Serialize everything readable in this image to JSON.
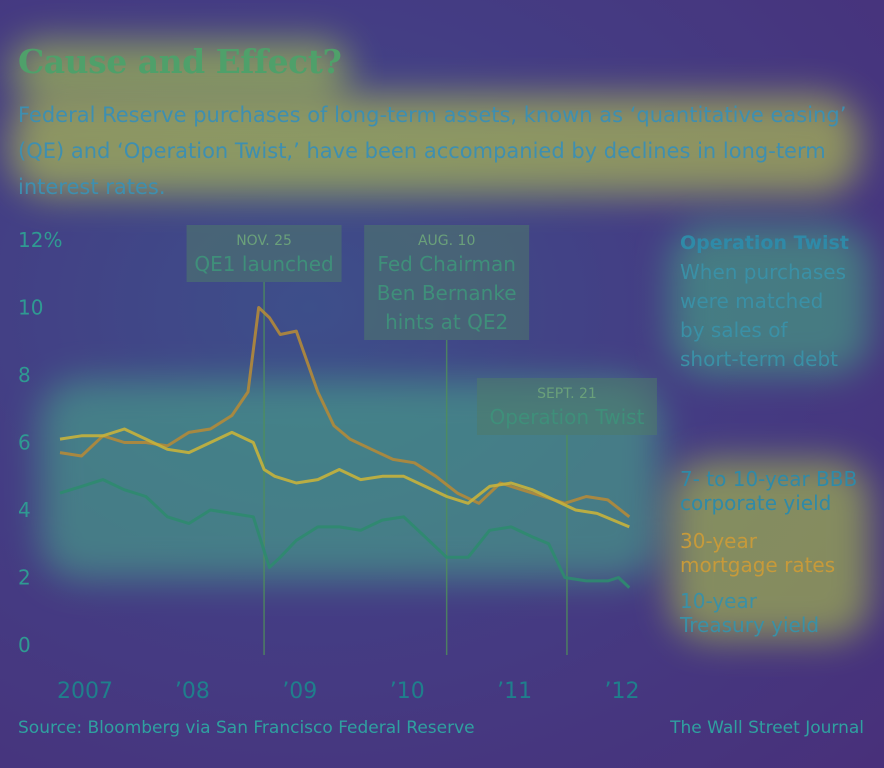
{
  "title": "Cause and Effect?",
  "subtitle": "Federal Reserve purchases of long-term assets, known as ‘quantitative easing’ (QE) and ‘Operation Twist,’ have been accompanied by declines in long-term interest rates.",
  "source": "Source: Bloomberg via San Francisco Federal Reserve",
  "credit": "The Wall Street Journal",
  "sidebar": {
    "heading": "Operation Twist",
    "lines": [
      "When purchases",
      "were matched",
      "by sales of",
      "short-term debt"
    ]
  },
  "colors": {
    "corporate": "#b28a3a",
    "mortgage": "#c7b23c",
    "treasury": "#2e8b6f",
    "annotation_box": "#4f7a6a"
  },
  "chart_data": {
    "type": "line",
    "yticks": [
      "12%",
      "10",
      "8",
      "6",
      "4",
      "2",
      "0"
    ],
    "ytick_values": [
      12,
      10,
      8,
      6,
      4,
      2,
      0
    ],
    "ylim": [
      0,
      12
    ],
    "xlim": [
      2007,
      2012.4
    ],
    "xticks": [
      {
        "label": "2007",
        "value": 2007
      },
      {
        "label": "’08",
        "value": 2008
      },
      {
        "label": "’09",
        "value": 2009
      },
      {
        "label": "’10",
        "value": 2010
      },
      {
        "label": "’11",
        "value": 2011
      },
      {
        "label": "’12",
        "value": 2012
      }
    ],
    "annotations": [
      {
        "date": "NOV. 25",
        "lines": [
          "QE1 launched"
        ],
        "x": 2008.9
      },
      {
        "date": "AUG. 10",
        "lines": [
          "Fed Chairman",
          "Ben Bernanke",
          "hints at QE2"
        ],
        "x": 2010.6
      },
      {
        "date": "SEPT. 21",
        "lines": [
          "Operation Twist"
        ],
        "x": 2011.72
      }
    ],
    "series": [
      {
        "name": "7- to 10-year BBB corporate yield",
        "legend_lines": [
          "7- to 10-year BBB",
          "corporate yield"
        ],
        "key": "corporate",
        "x": [
          2007.0,
          2007.2,
          2007.4,
          2007.6,
          2007.8,
          2008.0,
          2008.2,
          2008.4,
          2008.6,
          2008.75,
          2008.85,
          2008.95,
          2009.05,
          2009.2,
          2009.4,
          2009.55,
          2009.7,
          2009.9,
          2010.1,
          2010.3,
          2010.5,
          2010.7,
          2010.9,
          2011.1,
          2011.3,
          2011.5,
          2011.7,
          2011.9,
          2012.1,
          2012.3
        ],
        "y": [
          5.7,
          5.6,
          6.2,
          6.0,
          6.0,
          5.9,
          6.3,
          6.4,
          6.8,
          7.5,
          10.0,
          9.7,
          9.2,
          9.3,
          7.5,
          6.5,
          6.1,
          5.8,
          5.5,
          5.4,
          5.0,
          4.5,
          4.2,
          4.8,
          4.6,
          4.4,
          4.2,
          4.4,
          4.3,
          3.8
        ]
      },
      {
        "name": "30-year mortgage rates",
        "legend_lines": [
          "30-year",
          "mortgage rates"
        ],
        "key": "mortgage",
        "x": [
          2007.0,
          2007.2,
          2007.4,
          2007.6,
          2007.8,
          2008.0,
          2008.2,
          2008.4,
          2008.6,
          2008.8,
          2008.9,
          2009.0,
          2009.2,
          2009.4,
          2009.6,
          2009.8,
          2010.0,
          2010.2,
          2010.4,
          2010.6,
          2010.8,
          2011.0,
          2011.2,
          2011.4,
          2011.6,
          2011.8,
          2012.0,
          2012.3
        ],
        "y": [
          6.1,
          6.2,
          6.2,
          6.4,
          6.1,
          5.8,
          5.7,
          6.0,
          6.3,
          6.0,
          5.2,
          5.0,
          4.8,
          4.9,
          5.2,
          4.9,
          5.0,
          5.0,
          4.7,
          4.4,
          4.2,
          4.7,
          4.8,
          4.6,
          4.3,
          4.0,
          3.9,
          3.5
        ]
      },
      {
        "name": "10-year Treasury yield",
        "legend_lines": [
          "10-year",
          "Treasury yield"
        ],
        "key": "treasury",
        "x": [
          2007.0,
          2007.2,
          2007.4,
          2007.6,
          2007.8,
          2008.0,
          2008.2,
          2008.4,
          2008.6,
          2008.8,
          2008.95,
          2009.05,
          2009.2,
          2009.4,
          2009.6,
          2009.8,
          2010.0,
          2010.2,
          2010.4,
          2010.6,
          2010.8,
          2011.0,
          2011.2,
          2011.4,
          2011.55,
          2011.7,
          2011.9,
          2012.1,
          2012.2,
          2012.3
        ],
        "y": [
          4.5,
          4.7,
          4.9,
          4.6,
          4.4,
          3.8,
          3.6,
          4.0,
          3.9,
          3.8,
          2.3,
          2.6,
          3.1,
          3.5,
          3.5,
          3.4,
          3.7,
          3.8,
          3.2,
          2.6,
          2.6,
          3.4,
          3.5,
          3.2,
          3.0,
          2.0,
          1.9,
          1.9,
          2.0,
          1.7
        ]
      }
    ]
  }
}
